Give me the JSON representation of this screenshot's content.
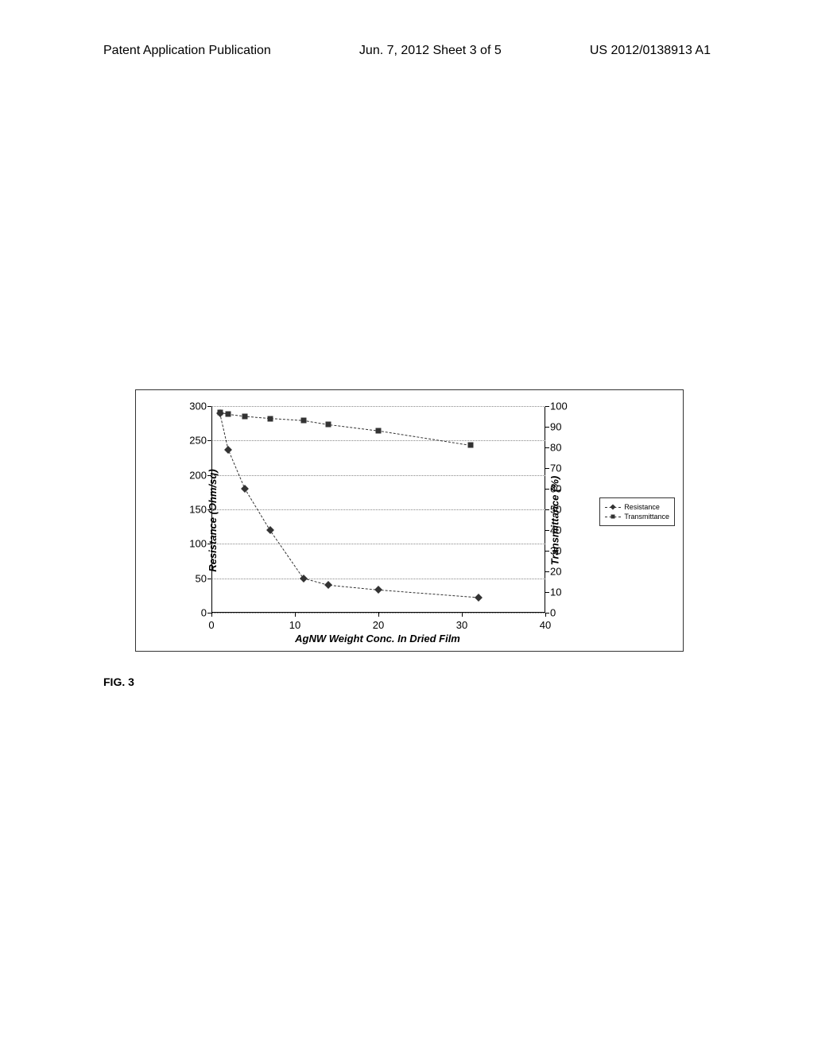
{
  "header": {
    "left": "Patent Application Publication",
    "center": "Jun. 7, 2012  Sheet 3 of 5",
    "right": "US 2012/0138913 A1"
  },
  "figure_label": "FIG. 3",
  "chart": {
    "type": "dual-axis-line",
    "x_axis": {
      "label": "AgNW Weight Conc. In Dried Film",
      "min": 0,
      "max": 40,
      "tick_step": 10,
      "ticks": [
        0,
        10,
        20,
        30,
        40
      ]
    },
    "y_axis_left": {
      "label": "Resistance (Ohm/sq)",
      "min": 0,
      "max": 300,
      "tick_step": 50,
      "ticks": [
        0,
        50,
        100,
        150,
        200,
        250,
        300
      ]
    },
    "y_axis_right": {
      "label": "Transmittance (%)",
      "min": 0,
      "max": 100,
      "tick_step": 10,
      "ticks": [
        0,
        10,
        20,
        30,
        40,
        50,
        60,
        70,
        80,
        90,
        100
      ]
    },
    "series": [
      {
        "name": "Resistance",
        "marker": "diamond",
        "color": "#333333",
        "axis": "left",
        "data": [
          {
            "x": 1,
            "y": 290
          },
          {
            "x": 2,
            "y": 237
          },
          {
            "x": 4,
            "y": 180
          },
          {
            "x": 7,
            "y": 120
          },
          {
            "x": 11,
            "y": 50
          },
          {
            "x": 14,
            "y": 40
          },
          {
            "x": 20,
            "y": 33
          },
          {
            "x": 32,
            "y": 22
          }
        ]
      },
      {
        "name": "Transmittance",
        "marker": "square",
        "color": "#333333",
        "axis": "right",
        "data": [
          {
            "x": 1,
            "y": 97
          },
          {
            "x": 2,
            "y": 96
          },
          {
            "x": 4,
            "y": 95
          },
          {
            "x": 7,
            "y": 94
          },
          {
            "x": 11,
            "y": 93
          },
          {
            "x": 14,
            "y": 91
          },
          {
            "x": 20,
            "y": 88
          },
          {
            "x": 31,
            "y": 81
          }
        ]
      }
    ],
    "legend": {
      "items": [
        "Resistance",
        "Transmittance"
      ]
    },
    "grid_color": "#888888",
    "background_color": "#ffffff",
    "axis_color": "#000000",
    "font_size_axis": 13,
    "font_size_legend": 9
  }
}
